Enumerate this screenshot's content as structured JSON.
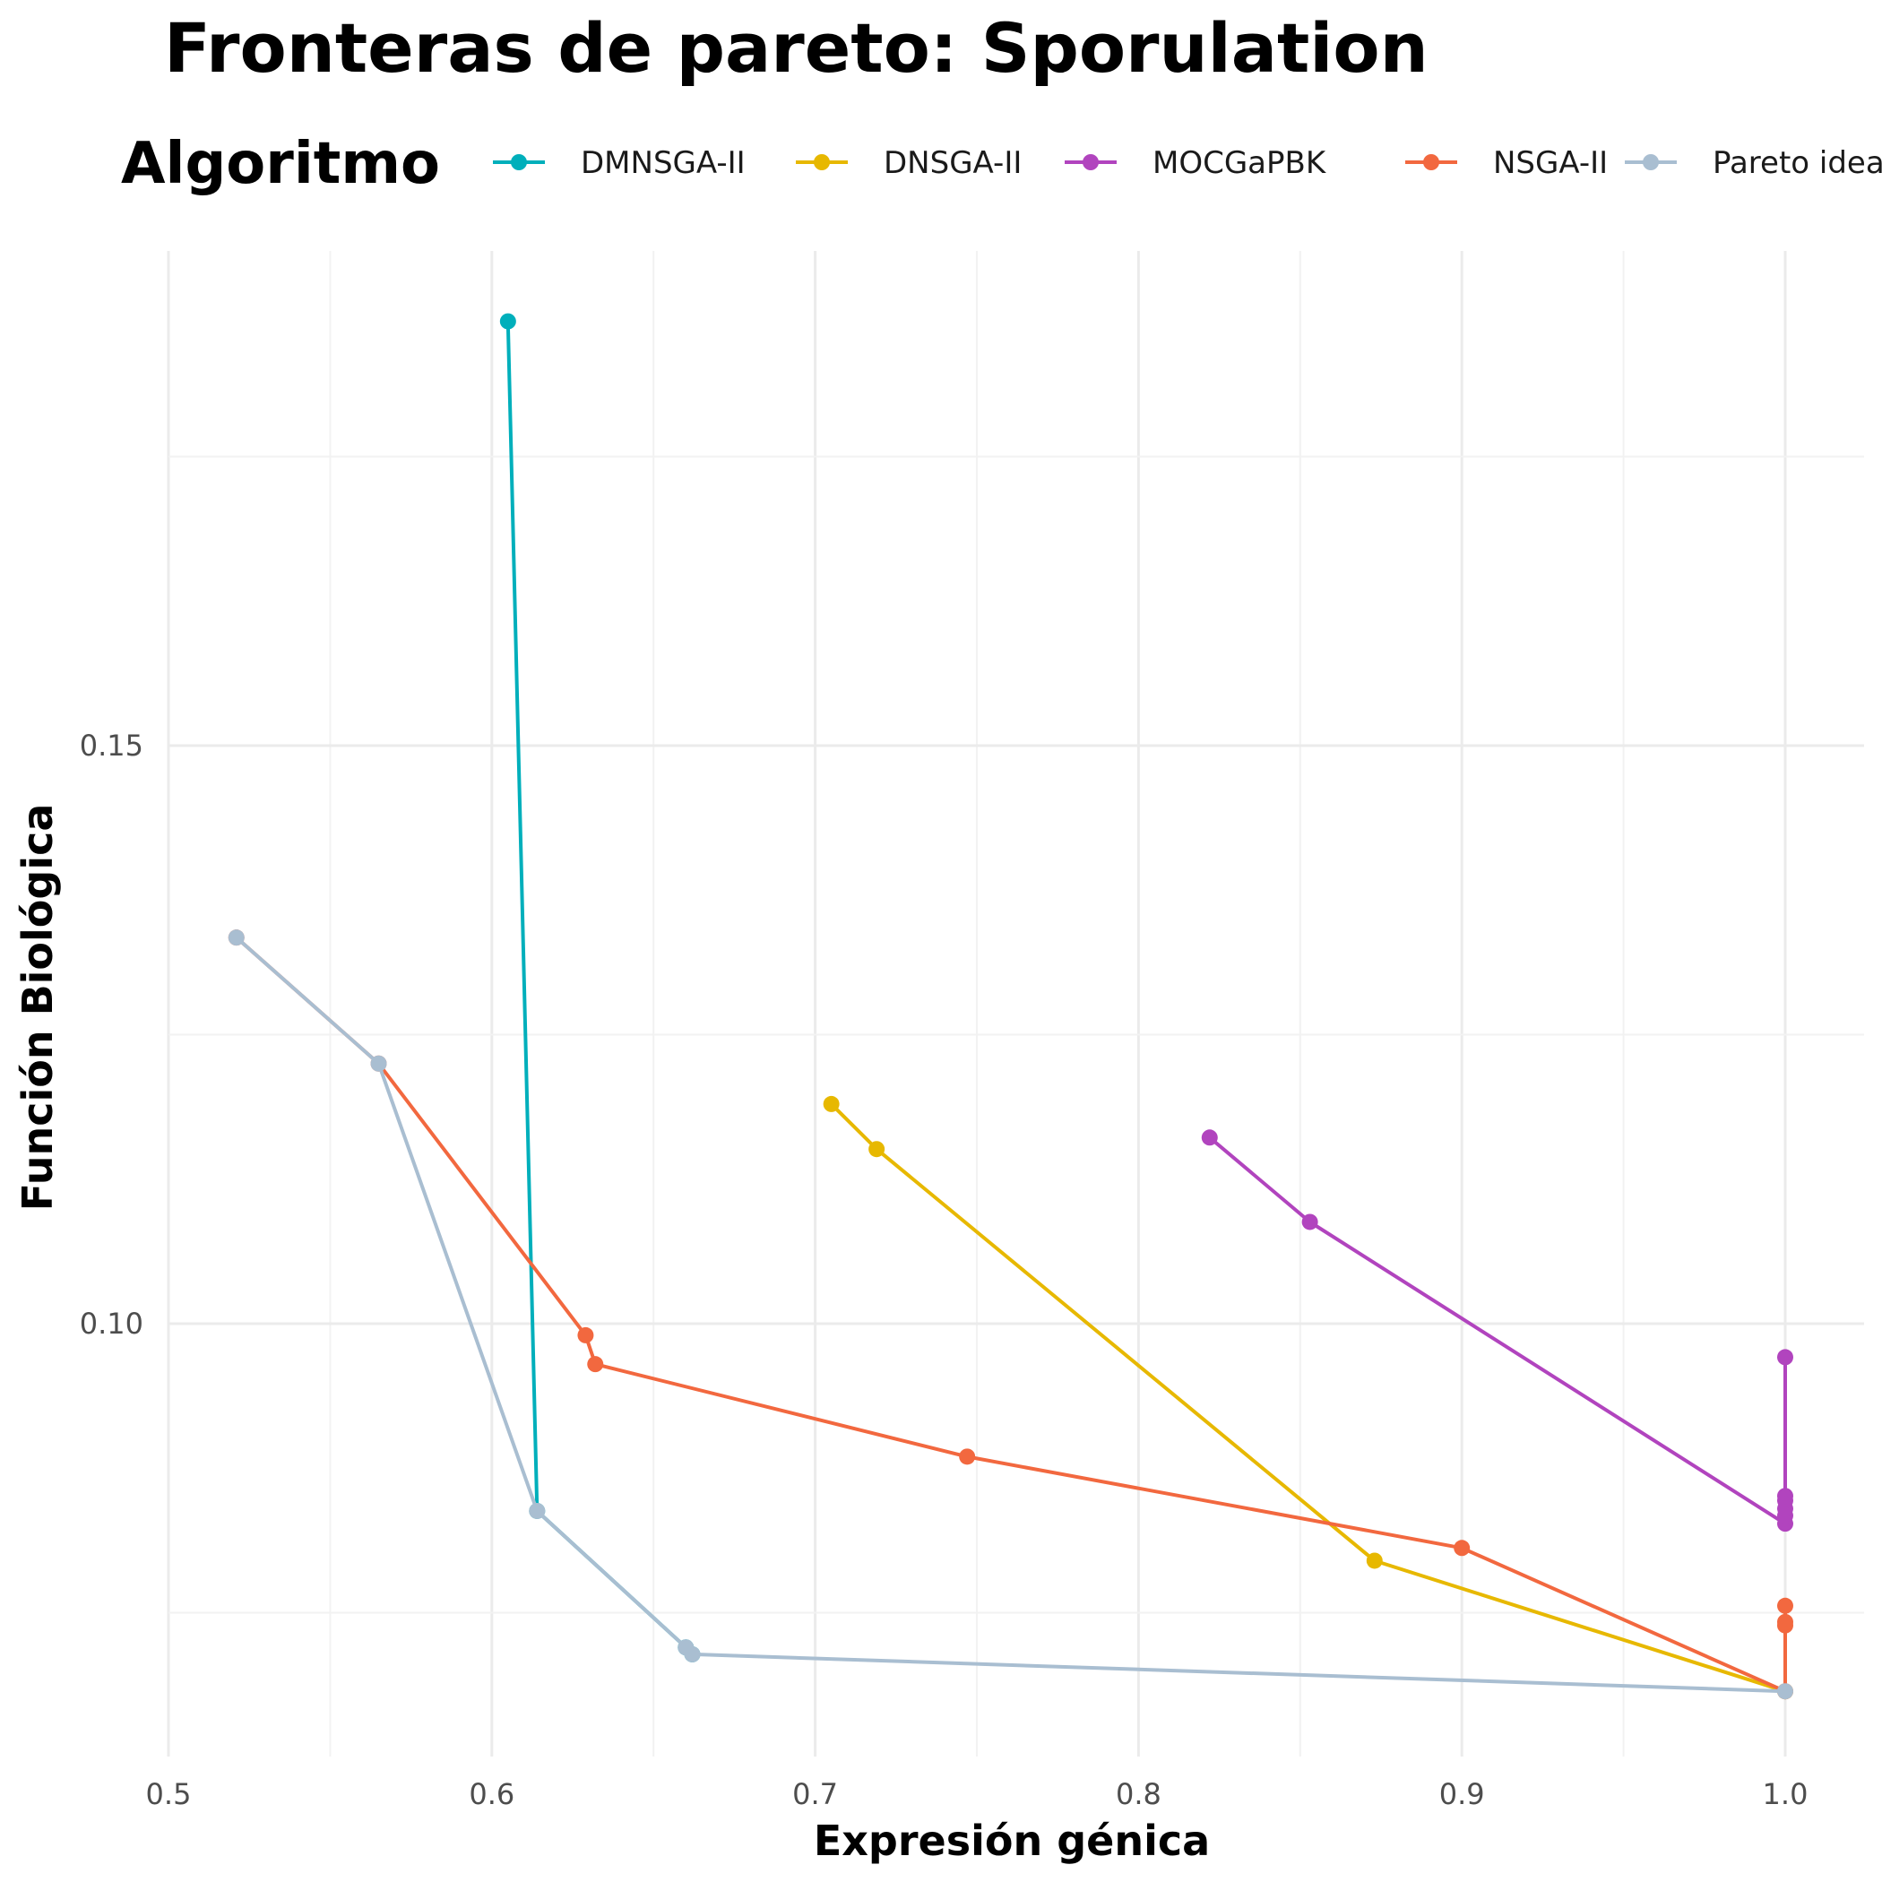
{
  "chart_data": {
    "type": "line",
    "title": "Fronteras de pareto: Sporulation",
    "xlabel": "Expresión génica",
    "ylabel": "Función Biológica",
    "xlim": [
      0.5,
      1.0
    ],
    "ylim": [
      0.062,
      0.193
    ],
    "x_ticks": [
      {
        "value": 0.5,
        "label": "0.5"
      },
      {
        "value": 0.6,
        "label": "0.6"
      },
      {
        "value": 0.7,
        "label": "0.7"
      },
      {
        "value": 0.8,
        "label": "0.8"
      },
      {
        "value": 0.9,
        "label": "0.9"
      },
      {
        "value": 1.0,
        "label": "1.0"
      }
    ],
    "y_ticks": [
      {
        "value": 0.1,
        "label": "0.10"
      },
      {
        "value": 0.15,
        "label": "0.15"
      }
    ],
    "grid": true,
    "legend": {
      "title": "Algoritmo",
      "placement": "top"
    },
    "series": [
      {
        "name": "DMNSGA-II",
        "color": "#00AFBB",
        "points": [
          [
            0.605,
            0.1867
          ],
          [
            0.614,
            0.0838
          ],
          [
            0.66,
            0.072
          ],
          [
            0.662,
            0.0714
          ]
        ]
      },
      {
        "name": "DNSGA-II",
        "color": "#E7B800",
        "points": [
          [
            0.705,
            0.119
          ],
          [
            0.719,
            0.1151
          ],
          [
            0.873,
            0.0795
          ],
          [
            1.0,
            0.0682
          ]
        ]
      },
      {
        "name": "MOCGaPBK",
        "color": "#B144BE",
        "points": [
          [
            0.822,
            0.1161
          ],
          [
            0.853,
            0.1088
          ],
          [
            1.0,
            0.0827
          ],
          [
            1.0,
            0.0834
          ],
          [
            1.0,
            0.084
          ],
          [
            1.0,
            0.0847
          ],
          [
            1.0,
            0.0851
          ],
          [
            1.0,
            0.0971
          ]
        ]
      },
      {
        "name": "NSGA-II",
        "color": "#F2683F",
        "points": [
          [
            0.521,
            0.1334
          ],
          [
            0.565,
            0.1225
          ],
          [
            0.629,
            0.099
          ],
          [
            0.632,
            0.0965
          ],
          [
            0.747,
            0.0885
          ],
          [
            0.9,
            0.0806
          ],
          [
            1.0,
            0.0682
          ],
          [
            1.0,
            0.0739
          ],
          [
            1.0,
            0.0742
          ],
          [
            1.0,
            0.0756
          ]
        ]
      },
      {
        "name": "Pareto ideal",
        "color": "#A9BED1",
        "points": [
          [
            0.521,
            0.1334
          ],
          [
            0.565,
            0.1225
          ],
          [
            0.614,
            0.0838
          ],
          [
            0.66,
            0.072
          ],
          [
            0.662,
            0.0714
          ],
          [
            1.0,
            0.0682
          ]
        ]
      }
    ]
  }
}
